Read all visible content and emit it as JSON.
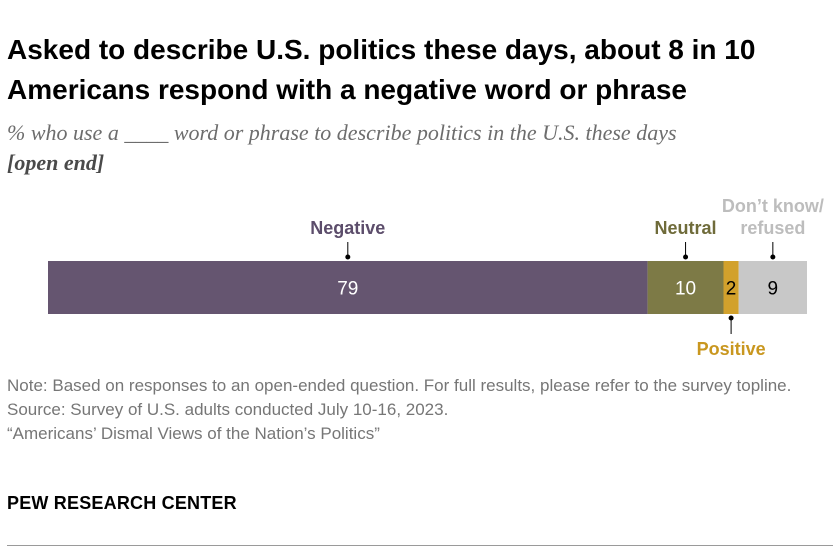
{
  "title": "Asked to describe U.S. politics these days, about 8 in 10 Americans respond with a negative word or phrase",
  "subtitle": "% who use a ____ word or phrase to describe politics in the U.S. these days",
  "subtitle_tag": "[open end]",
  "chart_data": {
    "type": "bar",
    "orientation": "horizontal",
    "stacked": true,
    "total": 100,
    "series": [
      {
        "name": "Negative",
        "value": 79,
        "color": "#655570",
        "label_color": "#5c4d6b",
        "label_position": "above",
        "value_color": "#ffffff"
      },
      {
        "name": "Neutral",
        "value": 10,
        "color": "#7d7a46",
        "label_color": "#6f6b3a",
        "label_position": "above",
        "value_color": "#ffffff"
      },
      {
        "name": "Positive",
        "value": 2,
        "color": "#d2a12c",
        "label_color": "#c9971f",
        "label_position": "below",
        "value_color": "#000000"
      },
      {
        "name": "Don’t know/ refused",
        "label_lines": [
          "Don’t know/",
          "refused"
        ],
        "value": 9,
        "color": "#c8c8c8",
        "label_color": "#bdbdbd",
        "label_position": "above",
        "value_color": "#000000"
      }
    ]
  },
  "notes": {
    "note": "Note: Based on responses to an open-ended question. For full results, please refer to the survey topline.",
    "source": "Source: Survey of U.S. adults conducted July 10-16, 2023.",
    "report": "“Americans’ Dismal Views of the Nation’s Politics”"
  },
  "brand": "PEW RESEARCH CENTER"
}
